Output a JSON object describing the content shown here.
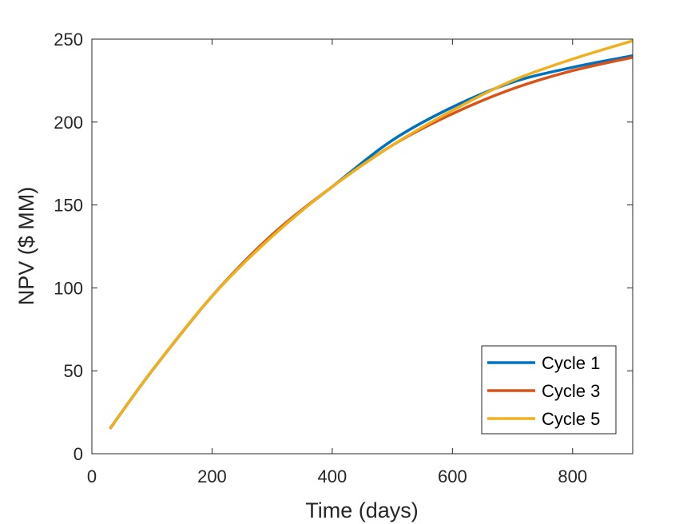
{
  "chart_data": {
    "type": "line",
    "title": "",
    "xlabel": "Time (days)",
    "ylabel": "NPV ($ MM)",
    "xlim": [
      0,
      900
    ],
    "ylim": [
      0,
      250
    ],
    "xticks": [
      0,
      200,
      400,
      600,
      800
    ],
    "yticks": [
      0,
      50,
      100,
      150,
      200,
      250
    ],
    "grid": false,
    "legend_position": "bottom-right",
    "series": [
      {
        "name": "Cycle 1",
        "color": "#0072BD",
        "x": [
          30,
          100,
          200,
          300,
          400,
          500,
          600,
          700,
          800,
          900
        ],
        "y": [
          15,
          50,
          95,
          132,
          161,
          189,
          209,
          224,
          233,
          240
        ]
      },
      {
        "name": "Cycle 3",
        "color": "#D95319",
        "x": [
          30,
          100,
          200,
          300,
          400,
          500,
          600,
          700,
          800,
          900
        ],
        "y": [
          15,
          50,
          95,
          132,
          161,
          186,
          205,
          220,
          231,
          239
        ]
      },
      {
        "name": "Cycle 5",
        "color": "#EDB120",
        "x": [
          30,
          100,
          200,
          300,
          400,
          500,
          600,
          700,
          800,
          900
        ],
        "y": [
          15,
          50,
          95,
          131,
          161,
          186,
          207,
          225,
          238,
          249
        ]
      }
    ]
  }
}
